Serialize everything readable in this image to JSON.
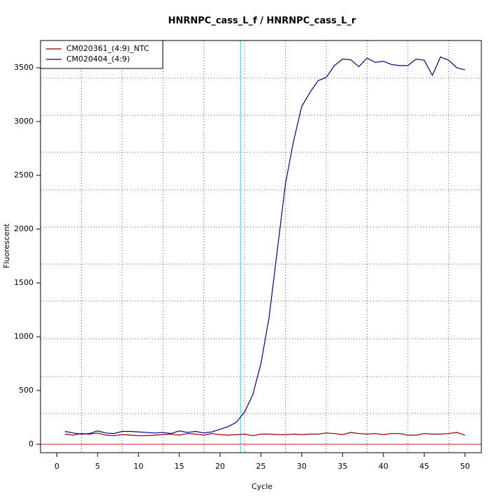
{
  "chart_data": {
    "type": "line",
    "title": "HNRNPC_cass_L_f / HNRNPC_cass_L_r",
    "xlabel": "Cycle",
    "ylabel": "Fluorescent",
    "x": [
      1,
      2,
      3,
      4,
      5,
      6,
      7,
      8,
      9,
      10,
      11,
      12,
      13,
      14,
      15,
      16,
      17,
      18,
      19,
      20,
      21,
      22,
      23,
      24,
      25,
      26,
      27,
      28,
      29,
      30,
      31,
      32,
      33,
      34,
      35,
      36,
      37,
      38,
      39,
      40,
      41,
      42,
      43,
      44,
      45,
      46,
      47,
      48,
      49,
      50
    ],
    "series": [
      {
        "name": "CM020361_(4:9)_NTC",
        "color": "#8b0000",
        "values": [
          95,
          85,
          100,
          95,
          105,
          85,
          80,
          90,
          85,
          80,
          80,
          85,
          90,
          95,
          85,
          100,
          95,
          85,
          100,
          90,
          85,
          90,
          95,
          80,
          95,
          95,
          90,
          90,
          95,
          90,
          95,
          95,
          105,
          100,
          90,
          110,
          100,
          95,
          100,
          90,
          100,
          100,
          85,
          85,
          100,
          95,
          95,
          100,
          110,
          85
        ]
      },
      {
        "name": "CM020404_(4:9)",
        "color": "#00008b",
        "values": [
          120,
          105,
          95,
          100,
          125,
          105,
          100,
          120,
          120,
          115,
          110,
          105,
          110,
          100,
          125,
          110,
          120,
          105,
          115,
          140,
          165,
          205,
          300,
          460,
          750,
          1180,
          1800,
          2420,
          2820,
          3140,
          3270,
          3380,
          3410,
          3520,
          3580,
          3575,
          3510,
          3590,
          3550,
          3560,
          3530,
          3520,
          3520,
          3580,
          3570,
          3430,
          3600,
          3570,
          3500,
          3480
        ]
      }
    ],
    "xlim": [
      -2,
      52
    ],
    "ylim": [
      -78,
      3753
    ],
    "xticks": [
      0,
      5,
      10,
      15,
      20,
      25,
      30,
      35,
      40,
      45,
      50
    ],
    "yticks": [
      0,
      500,
      1000,
      1500,
      2000,
      2500,
      3000,
      3500
    ],
    "xgrid": [
      3,
      8,
      13,
      18,
      23,
      28,
      33,
      38,
      43,
      48
    ],
    "ygrid": [
      286,
      630,
      980,
      1331,
      1675,
      2019,
      2364,
      2714,
      3058,
      3403
    ],
    "threshold_x": 22.5,
    "threshold_color": "#00e5ee",
    "baseline_y": 0,
    "baseline_color": "#b22222",
    "legend": "top-left"
  }
}
